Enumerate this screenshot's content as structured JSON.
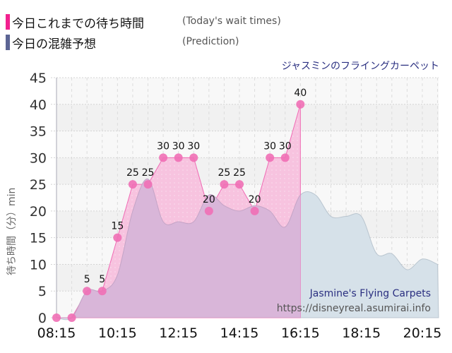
{
  "legend": {
    "today": {
      "label": "今日これまでの待ち時間",
      "sub": "(Today's wait times)",
      "color": "#f2218f"
    },
    "prediction": {
      "label": "今日の混雑予想",
      "sub": "(Prediction)",
      "color": "#5c6594"
    }
  },
  "attraction": {
    "name_ja": "ジャスミンのフライングカーペット",
    "name_en": "Jasmine's Flying Carpets",
    "url": "https://disneyreal.asumirai.info"
  },
  "y_axis_title": "待ち時間（分）min",
  "chart_data": {
    "type": "area",
    "title": "ジャスミンのフライングカーペット",
    "xlabel": "",
    "ylabel": "待ち時間（分）min",
    "ylim": [
      0,
      45
    ],
    "yticks": [
      0,
      5,
      10,
      15,
      20,
      25,
      30,
      35,
      40,
      45
    ],
    "xticks": [
      "08:15",
      "10:15",
      "12:15",
      "14:15",
      "16:15",
      "18:15",
      "20:15"
    ],
    "grid": true,
    "legend_position": "top-left",
    "series": [
      {
        "name": "今日これまでの待ち時間 (Today's wait times)",
        "x": [
          "08:15",
          "08:45",
          "09:15",
          "09:45",
          "10:15",
          "10:45",
          "11:15",
          "11:45",
          "12:15",
          "12:45",
          "13:15",
          "13:45",
          "14:15",
          "14:45",
          "15:15",
          "15:45",
          "16:15"
        ],
        "values": [
          0,
          0,
          5,
          5,
          15,
          25,
          25,
          30,
          30,
          30,
          20,
          25,
          25,
          20,
          30,
          30,
          40
        ]
      },
      {
        "name": "今日の混雑予想 (Prediction)",
        "x": [
          "08:15",
          "08:45",
          "09:15",
          "09:45",
          "10:15",
          "10:45",
          "11:15",
          "11:45",
          "12:15",
          "12:45",
          "13:15",
          "13:45",
          "14:15",
          "14:45",
          "15:15",
          "15:45",
          "16:15",
          "16:45",
          "17:15",
          "17:45",
          "18:15",
          "18:45",
          "19:15",
          "19:45",
          "20:15",
          "20:45"
        ],
        "values": [
          0,
          0,
          5,
          5,
          8,
          20,
          26,
          18,
          18,
          18,
          23,
          21,
          20,
          21,
          20,
          17,
          23,
          23,
          19,
          19,
          19,
          12,
          12,
          9,
          11,
          10
        ]
      }
    ]
  }
}
